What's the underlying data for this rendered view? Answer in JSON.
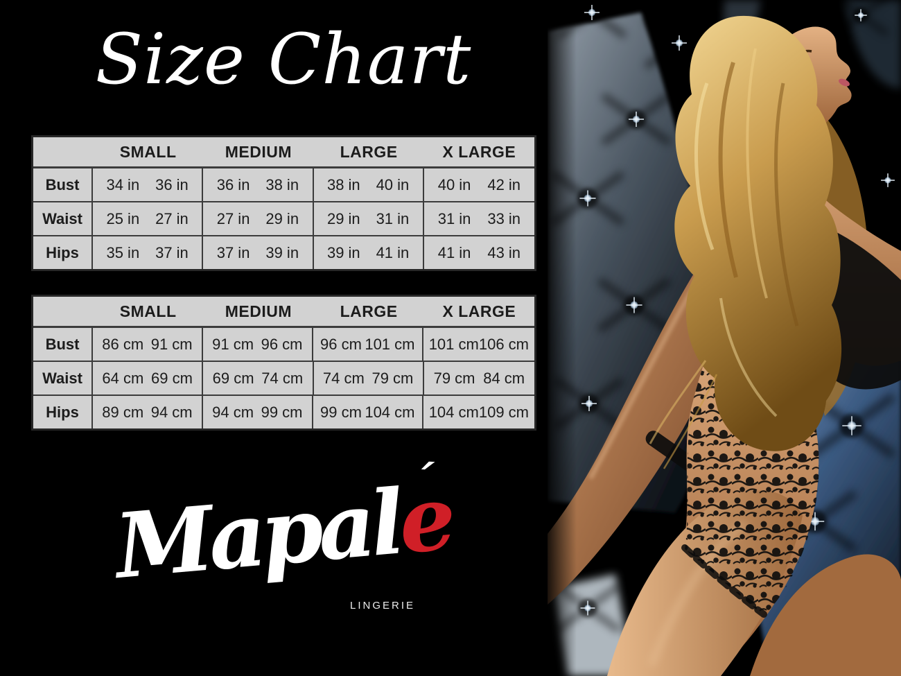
{
  "title": "Size Chart",
  "tables": [
    {
      "id": "inches",
      "unit": "in",
      "headers": [
        "SMALL",
        "MEDIUM",
        "LARGE",
        "X LARGE"
      ],
      "rows": [
        {
          "label": "Bust",
          "values": [
            [
              "34 in",
              "36 in"
            ],
            [
              "36 in",
              "38 in"
            ],
            [
              "38 in",
              "40 in"
            ],
            [
              "40 in",
              "42 in"
            ]
          ]
        },
        {
          "label": "Waist",
          "values": [
            [
              "25 in",
              "27 in"
            ],
            [
              "27 in",
              "29 in"
            ],
            [
              "29 in",
              "31 in"
            ],
            [
              "31 in",
              "33 in"
            ]
          ]
        },
        {
          "label": "Hips",
          "values": [
            [
              "35 in",
              "37 in"
            ],
            [
              "37 in",
              "39 in"
            ],
            [
              "39 in",
              "41 in"
            ],
            [
              "41 in",
              "43 in"
            ]
          ]
        }
      ]
    },
    {
      "id": "centimeters",
      "unit": "cm",
      "headers": [
        "SMALL",
        "MEDIUM",
        "LARGE",
        "X LARGE"
      ],
      "rows": [
        {
          "label": "Bust",
          "values": [
            [
              "86 cm",
              "91 cm"
            ],
            [
              "91 cm",
              "96 cm"
            ],
            [
              "96 cm",
              "101 cm"
            ],
            [
              "101 cm",
              "106 cm"
            ]
          ]
        },
        {
          "label": "Waist",
          "values": [
            [
              "64 cm",
              "69 cm"
            ],
            [
              "69 cm",
              "74 cm"
            ],
            [
              "74 cm",
              "79 cm"
            ],
            [
              "79 cm",
              "84 cm"
            ]
          ]
        },
        {
          "label": "Hips",
          "values": [
            [
              "89 cm",
              "94 cm"
            ],
            [
              "94 cm",
              "99 cm"
            ],
            [
              "99 cm",
              "104 cm"
            ],
            [
              "104 cm",
              "109 cm"
            ]
          ]
        }
      ]
    }
  ],
  "brand": {
    "name_base": "Mapal",
    "accent_letter": "e",
    "accent_mark": "´",
    "tagline": "LINGERIE",
    "accent_color": "#d01f27"
  },
  "colors": {
    "background": "#000000",
    "table_bg": "#d2d2d2",
    "table_border": "#3b3b3b",
    "table_text": "#1c1c1c",
    "title_color": "#ffffff",
    "tufted_leather_blue": "#3f608a",
    "skin_tone": "#c98e5f",
    "hair_blonde": "#c99c4e"
  }
}
